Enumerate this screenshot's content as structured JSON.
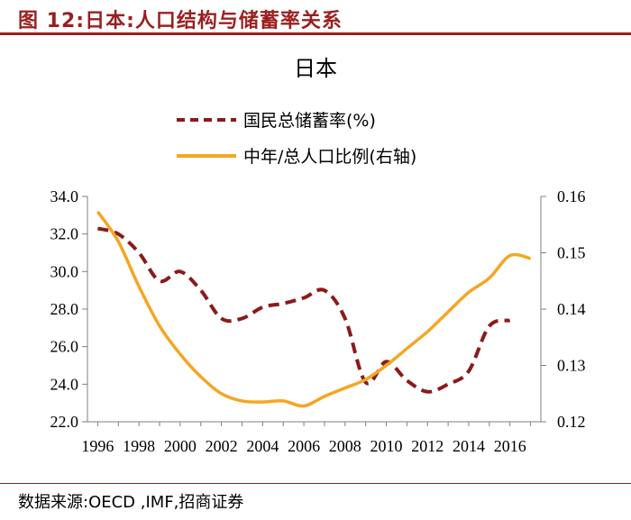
{
  "figure": {
    "number_title": "图 12:日本:人口结构与储蓄率关系",
    "source": "数据来源:OECD ,IMF,招商证券"
  },
  "colors": {
    "accent": "#9b1f1f",
    "savings_line": "#8b1a1a",
    "ratio_line": "#f5a623",
    "axis": "#7f7f7f"
  },
  "chart_data": {
    "type": "line",
    "title": "日本",
    "legend_position": "top-center",
    "x_tick_labels": [
      "1996",
      "1998",
      "2000",
      "2002",
      "2004",
      "2006",
      "2008",
      "2010",
      "2012",
      "2014",
      "2016"
    ],
    "xlim": [
      1995.5,
      2017.5
    ],
    "left_axis": {
      "ylim": [
        22.0,
        34.0
      ],
      "ticks": [
        22.0,
        24.0,
        26.0,
        28.0,
        30.0,
        32.0,
        34.0
      ],
      "tick_labels": [
        "22.0",
        "24.0",
        "26.0",
        "28.0",
        "30.0",
        "32.0",
        "34.0"
      ]
    },
    "right_axis": {
      "ylim": [
        0.12,
        0.16
      ],
      "ticks": [
        0.12,
        0.13,
        0.14,
        0.15,
        0.16
      ],
      "tick_labels": [
        "0.12",
        "0.13",
        "0.14",
        "0.15",
        "0.16"
      ]
    },
    "series": [
      {
        "name": "国民总储蓄率(%)",
        "axis": "left",
        "style": "dashed",
        "x": [
          1996,
          1997,
          1998,
          1999,
          2000,
          2001,
          2002,
          2003,
          2004,
          2005,
          2006,
          2007,
          2008,
          2009,
          2010,
          2011,
          2012,
          2013,
          2014,
          2015,
          2016
        ],
        "values": [
          32.3,
          32.0,
          31.0,
          29.5,
          30.0,
          29.0,
          27.5,
          27.5,
          28.1,
          28.3,
          28.6,
          29.0,
          27.5,
          24.1,
          25.2,
          24.2,
          23.6,
          24.0,
          24.7,
          27.1,
          27.4
        ]
      },
      {
        "name": "中年/总人口比例(右轴)",
        "axis": "right",
        "style": "solid",
        "x": [
          1996,
          1997,
          1998,
          1999,
          2000,
          2001,
          2002,
          2003,
          2004,
          2005,
          2006,
          2007,
          2008,
          2009,
          2010,
          2011,
          2012,
          2013,
          2014,
          2015,
          2016,
          2017
        ],
        "values": [
          0.1573,
          0.152,
          0.144,
          0.137,
          0.132,
          0.128,
          0.125,
          0.1237,
          0.1235,
          0.1237,
          0.1228,
          0.1245,
          0.126,
          0.1275,
          0.13,
          0.133,
          0.136,
          0.1395,
          0.143,
          0.1455,
          0.1495,
          0.149
        ]
      }
    ]
  }
}
